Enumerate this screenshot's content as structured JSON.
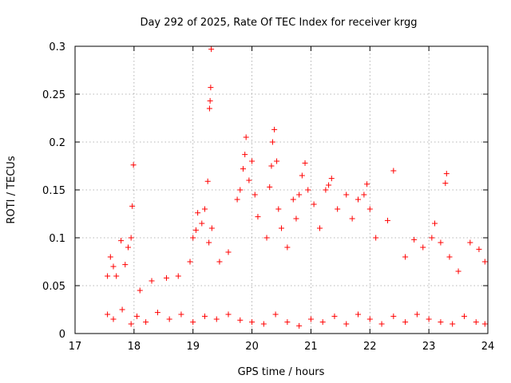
{
  "chart_data": {
    "type": "scatter",
    "title": "Day 292 of 2025, Rate Of TEC Index for receiver krgg",
    "xlabel": "GPS time / hours",
    "ylabel": "ROTI / TECUs",
    "xlim": [
      17,
      24
    ],
    "ylim": [
      0,
      0.3
    ],
    "x_ticks": [
      17,
      18,
      19,
      20,
      21,
      22,
      23,
      24
    ],
    "x_tick_labels": [
      "17",
      "18",
      "19",
      "20",
      "21",
      "22",
      "23",
      "24"
    ],
    "y_ticks": [
      0,
      0.05,
      0.1,
      0.15,
      0.2,
      0.25,
      0.3
    ],
    "y_tick_labels": [
      "0",
      "0.05",
      "0.1",
      "0.15",
      "0.2",
      "0.25",
      "0.3"
    ],
    "grid": true,
    "marker": "+",
    "marker_color": "#ff0000",
    "series": [
      {
        "points": [
          [
            17.55,
            0.06
          ],
          [
            17.6,
            0.08
          ],
          [
            17.65,
            0.07
          ],
          [
            17.7,
            0.06
          ],
          [
            17.78,
            0.097
          ],
          [
            17.85,
            0.072
          ],
          [
            17.9,
            0.09
          ],
          [
            17.95,
            0.1
          ],
          [
            17.97,
            0.133
          ],
          [
            17.99,
            0.176
          ],
          [
            18.1,
            0.045
          ],
          [
            18.3,
            0.055
          ],
          [
            18.55,
            0.058
          ],
          [
            18.75,
            0.06
          ],
          [
            18.95,
            0.075
          ],
          [
            19.0,
            0.1
          ],
          [
            19.05,
            0.108
          ],
          [
            19.08,
            0.126
          ],
          [
            19.15,
            0.115
          ],
          [
            19.2,
            0.13
          ],
          [
            19.25,
            0.159
          ],
          [
            19.27,
            0.095
          ],
          [
            19.28,
            0.235
          ],
          [
            19.29,
            0.243
          ],
          [
            19.3,
            0.257
          ],
          [
            19.31,
            0.297
          ],
          [
            19.32,
            0.11
          ],
          [
            19.45,
            0.075
          ],
          [
            19.6,
            0.085
          ],
          [
            19.75,
            0.14
          ],
          [
            19.8,
            0.15
          ],
          [
            19.85,
            0.172
          ],
          [
            19.88,
            0.187
          ],
          [
            19.9,
            0.205
          ],
          [
            19.95,
            0.16
          ],
          [
            20.0,
            0.18
          ],
          [
            20.05,
            0.145
          ],
          [
            20.1,
            0.122
          ],
          [
            20.25,
            0.1
          ],
          [
            20.3,
            0.153
          ],
          [
            20.33,
            0.175
          ],
          [
            20.35,
            0.2
          ],
          [
            20.38,
            0.213
          ],
          [
            20.42,
            0.18
          ],
          [
            20.45,
            0.13
          ],
          [
            20.5,
            0.11
          ],
          [
            20.6,
            0.09
          ],
          [
            20.7,
            0.14
          ],
          [
            20.75,
            0.12
          ],
          [
            20.8,
            0.145
          ],
          [
            20.85,
            0.165
          ],
          [
            20.9,
            0.178
          ],
          [
            20.95,
            0.15
          ],
          [
            21.05,
            0.135
          ],
          [
            21.15,
            0.11
          ],
          [
            21.25,
            0.15
          ],
          [
            21.3,
            0.155
          ],
          [
            21.35,
            0.162
          ],
          [
            21.45,
            0.13
          ],
          [
            21.6,
            0.145
          ],
          [
            21.7,
            0.12
          ],
          [
            21.8,
            0.14
          ],
          [
            21.9,
            0.145
          ],
          [
            21.95,
            0.156
          ],
          [
            22.0,
            0.13
          ],
          [
            22.1,
            0.1
          ],
          [
            22.3,
            0.118
          ],
          [
            22.4,
            0.17
          ],
          [
            22.6,
            0.08
          ],
          [
            22.75,
            0.098
          ],
          [
            22.9,
            0.09
          ],
          [
            23.05,
            0.1
          ],
          [
            23.1,
            0.115
          ],
          [
            23.2,
            0.095
          ],
          [
            23.28,
            0.157
          ],
          [
            23.3,
            0.167
          ],
          [
            23.35,
            0.08
          ],
          [
            23.5,
            0.065
          ],
          [
            23.7,
            0.095
          ],
          [
            23.85,
            0.088
          ],
          [
            23.95,
            0.075
          ],
          [
            17.55,
            0.02
          ],
          [
            17.65,
            0.015
          ],
          [
            17.8,
            0.025
          ],
          [
            17.95,
            0.01
          ],
          [
            18.05,
            0.018
          ],
          [
            18.2,
            0.012
          ],
          [
            18.4,
            0.022
          ],
          [
            18.6,
            0.015
          ],
          [
            18.8,
            0.02
          ],
          [
            19.0,
            0.012
          ],
          [
            19.2,
            0.018
          ],
          [
            19.4,
            0.015
          ],
          [
            19.6,
            0.02
          ],
          [
            19.8,
            0.014
          ],
          [
            20.0,
            0.012
          ],
          [
            20.2,
            0.01
          ],
          [
            20.4,
            0.02
          ],
          [
            20.6,
            0.012
          ],
          [
            20.8,
            0.008
          ],
          [
            21.0,
            0.015
          ],
          [
            21.2,
            0.012
          ],
          [
            21.4,
            0.018
          ],
          [
            21.6,
            0.01
          ],
          [
            21.8,
            0.02
          ],
          [
            22.0,
            0.015
          ],
          [
            22.2,
            0.01
          ],
          [
            22.4,
            0.018
          ],
          [
            22.6,
            0.012
          ],
          [
            22.8,
            0.02
          ],
          [
            23.0,
            0.015
          ],
          [
            23.2,
            0.012
          ],
          [
            23.4,
            0.01
          ],
          [
            23.6,
            0.018
          ],
          [
            23.8,
            0.012
          ],
          [
            23.95,
            0.01
          ]
        ]
      }
    ]
  }
}
